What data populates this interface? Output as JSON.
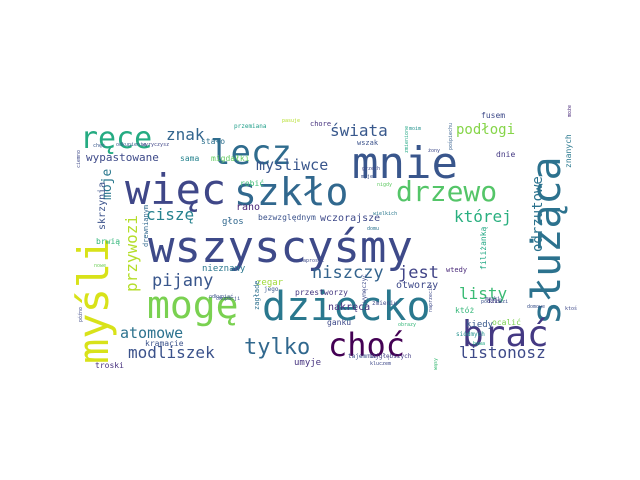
{
  "words": [
    {
      "text": "wszyscyśmy",
      "color": "#3e4a89"
    },
    {
      "text": "mnie",
      "color": "#39568c"
    },
    {
      "text": "więc",
      "color": "#3f4788"
    },
    {
      "text": "szkło",
      "color": "#31688e"
    },
    {
      "text": "dziecko",
      "color": "#2a788e"
    },
    {
      "text": "służąca",
      "color": "#2c728e"
    },
    {
      "text": "mogę",
      "color": "#7ad151"
    },
    {
      "text": "brać",
      "color": "#443983"
    },
    {
      "text": "choć",
      "color": "#440154"
    },
    {
      "text": "myśli",
      "color": "#d8e219"
    },
    {
      "text": "lecz",
      "color": "#2f6c8e"
    },
    {
      "text": "ręce",
      "color": "#25ab82"
    },
    {
      "text": "drzewo",
      "color": "#54c568"
    },
    {
      "text": "tylko",
      "color": "#31688e"
    },
    {
      "text": "świata",
      "color": "#38588c"
    },
    {
      "text": "znak",
      "color": "#32658e"
    },
    {
      "text": "podłogi",
      "color": "#86d549"
    },
    {
      "text": "myśliwce",
      "color": "#39568c"
    },
    {
      "text": "której",
      "color": "#29af7f"
    },
    {
      "text": "odrzutowe",
      "color": "#2c738e"
    },
    {
      "text": "ciszę",
      "color": "#26828e"
    },
    {
      "text": "przywozi",
      "color": "#b5de2b"
    },
    {
      "text": "moje",
      "color": "#2a788e"
    },
    {
      "text": "pijany",
      "color": "#39568c"
    },
    {
      "text": "niszczy",
      "color": "#33638d"
    },
    {
      "text": "jest",
      "color": "#414487"
    },
    {
      "text": "listy",
      "color": "#3bbb75"
    },
    {
      "text": "atomowe",
      "color": "#2c728e"
    },
    {
      "text": "modliszek",
      "color": "#3b528b"
    },
    {
      "text": "listonosz",
      "color": "#3e4a89"
    },
    {
      "text": "wypastowane",
      "color": "#3e4a89"
    },
    {
      "text": "sama",
      "color": "#25838e"
    },
    {
      "text": "migdałki",
      "color": "#63cb5f"
    },
    {
      "text": "rano",
      "color": "#482576"
    },
    {
      "text": "głos",
      "color": "#31688e"
    },
    {
      "text": "bezwzględnym",
      "color": "#3b528b"
    },
    {
      "text": "wczorajsze",
      "color": "#3e4989"
    },
    {
      "text": "nieznany",
      "color": "#2a778e"
    },
    {
      "text": "zegar",
      "color": "#a0da39"
    },
    {
      "text": "przestworzy",
      "color": "#453781"
    },
    {
      "text": "nakręca",
      "color": "#46327e"
    },
    {
      "text": "otworzy",
      "color": "#3e4989"
    },
    {
      "text": "skrzynia",
      "color": "#3b528b"
    },
    {
      "text": "filiżanką",
      "color": "#22a884"
    },
    {
      "text": "kiedy",
      "color": "#38588c"
    },
    {
      "text": "umyje",
      "color": "#46337f"
    },
    {
      "text": "troski",
      "color": "#46307e"
    },
    {
      "text": "kramacie",
      "color": "#3b528b"
    },
    {
      "text": "dnie",
      "color": "#443983"
    },
    {
      "text": "fusem",
      "color": "#3e4a89"
    },
    {
      "text": "ocalić",
      "color": "#7ad151"
    },
    {
      "text": "znanych",
      "color": "#2a788e"
    },
    {
      "text": "wszak",
      "color": "#3b528b"
    },
    {
      "text": "chore",
      "color": "#46327e"
    },
    {
      "text": "stało",
      "color": "#2d708e"
    },
    {
      "text": "robić",
      "color": "#3bbb75"
    },
    {
      "text": "ganku",
      "color": "#3e4989"
    },
    {
      "text": "wtedy",
      "color": "#482878"
    },
    {
      "text": "brwią",
      "color": "#32b67a"
    },
    {
      "text": "drewnianym",
      "color": "#31688e"
    },
    {
      "text": "zagłade",
      "color": "#2d708e"
    },
    {
      "text": "jego",
      "color": "#38588c"
    },
    {
      "text": "któż",
      "color": "#35b779"
    },
    {
      "text": "tajemnic",
      "color": "#3b528b"
    },
    {
      "text": "najgłębszych",
      "color": "#433d84"
    },
    {
      "text": "siódmych",
      "color": "#21918c"
    },
    {
      "text": "zmieniu",
      "color": "#3e4a89"
    },
    {
      "text": "dziś",
      "color": "#482878"
    },
    {
      "text": "wymęczyć",
      "color": "#3e4989"
    },
    {
      "text": "przemiana",
      "color": "#1f9e89"
    },
    {
      "text": "chęć",
      "color": "#38588c"
    },
    {
      "text": "okupacji",
      "color": "#3b528b"
    },
    {
      "text": "odkupienia",
      "color": "#355f8d"
    },
    {
      "text": "wyryczysz",
      "color": "#404688"
    },
    {
      "text": "grzech",
      "color": "#3e4a89"
    },
    {
      "text": "myje",
      "color": "#3b528b"
    },
    {
      "text": "moim",
      "color": "#21918c"
    },
    {
      "text": "zmienione",
      "color": "#22a884"
    },
    {
      "text": "żony",
      "color": "#3e4989"
    },
    {
      "text": "pośpiechu",
      "color": "#355f8d"
    },
    {
      "text": "nigdy",
      "color": "#5ec962"
    },
    {
      "text": "naprzeciw",
      "color": "#3e4989"
    },
    {
      "text": "wielkich",
      "color": "#2a788e"
    },
    {
      "text": "domu",
      "color": "#2c728e"
    },
    {
      "text": "odkupiać",
      "color": "#3b528b"
    },
    {
      "text": "obrazy",
      "color": "#35b779"
    },
    {
      "text": "ciemno",
      "color": "#3e4989"
    },
    {
      "text": "późno",
      "color": "#3e4989"
    },
    {
      "text": "nowe",
      "color": "#6ece58"
    },
    {
      "text": "podchodzi",
      "color": "#3b528b"
    },
    {
      "text": "maski",
      "color": "#3e4989"
    },
    {
      "text": "może",
      "color": "#482878"
    },
    {
      "text": "zaprosić",
      "color": "#3e4a89"
    },
    {
      "text": "pasuje",
      "color": "#b5de2b"
    },
    {
      "text": "ktoś",
      "color": "#3e4989"
    },
    {
      "text": "bywa",
      "color": "#22a884"
    },
    {
      "text": "wąsy",
      "color": "#3bbb75"
    },
    {
      "text": "domowe",
      "color": "#3b528b"
    },
    {
      "text": "kluczem",
      "color": "#3e4989"
    }
  ]
}
